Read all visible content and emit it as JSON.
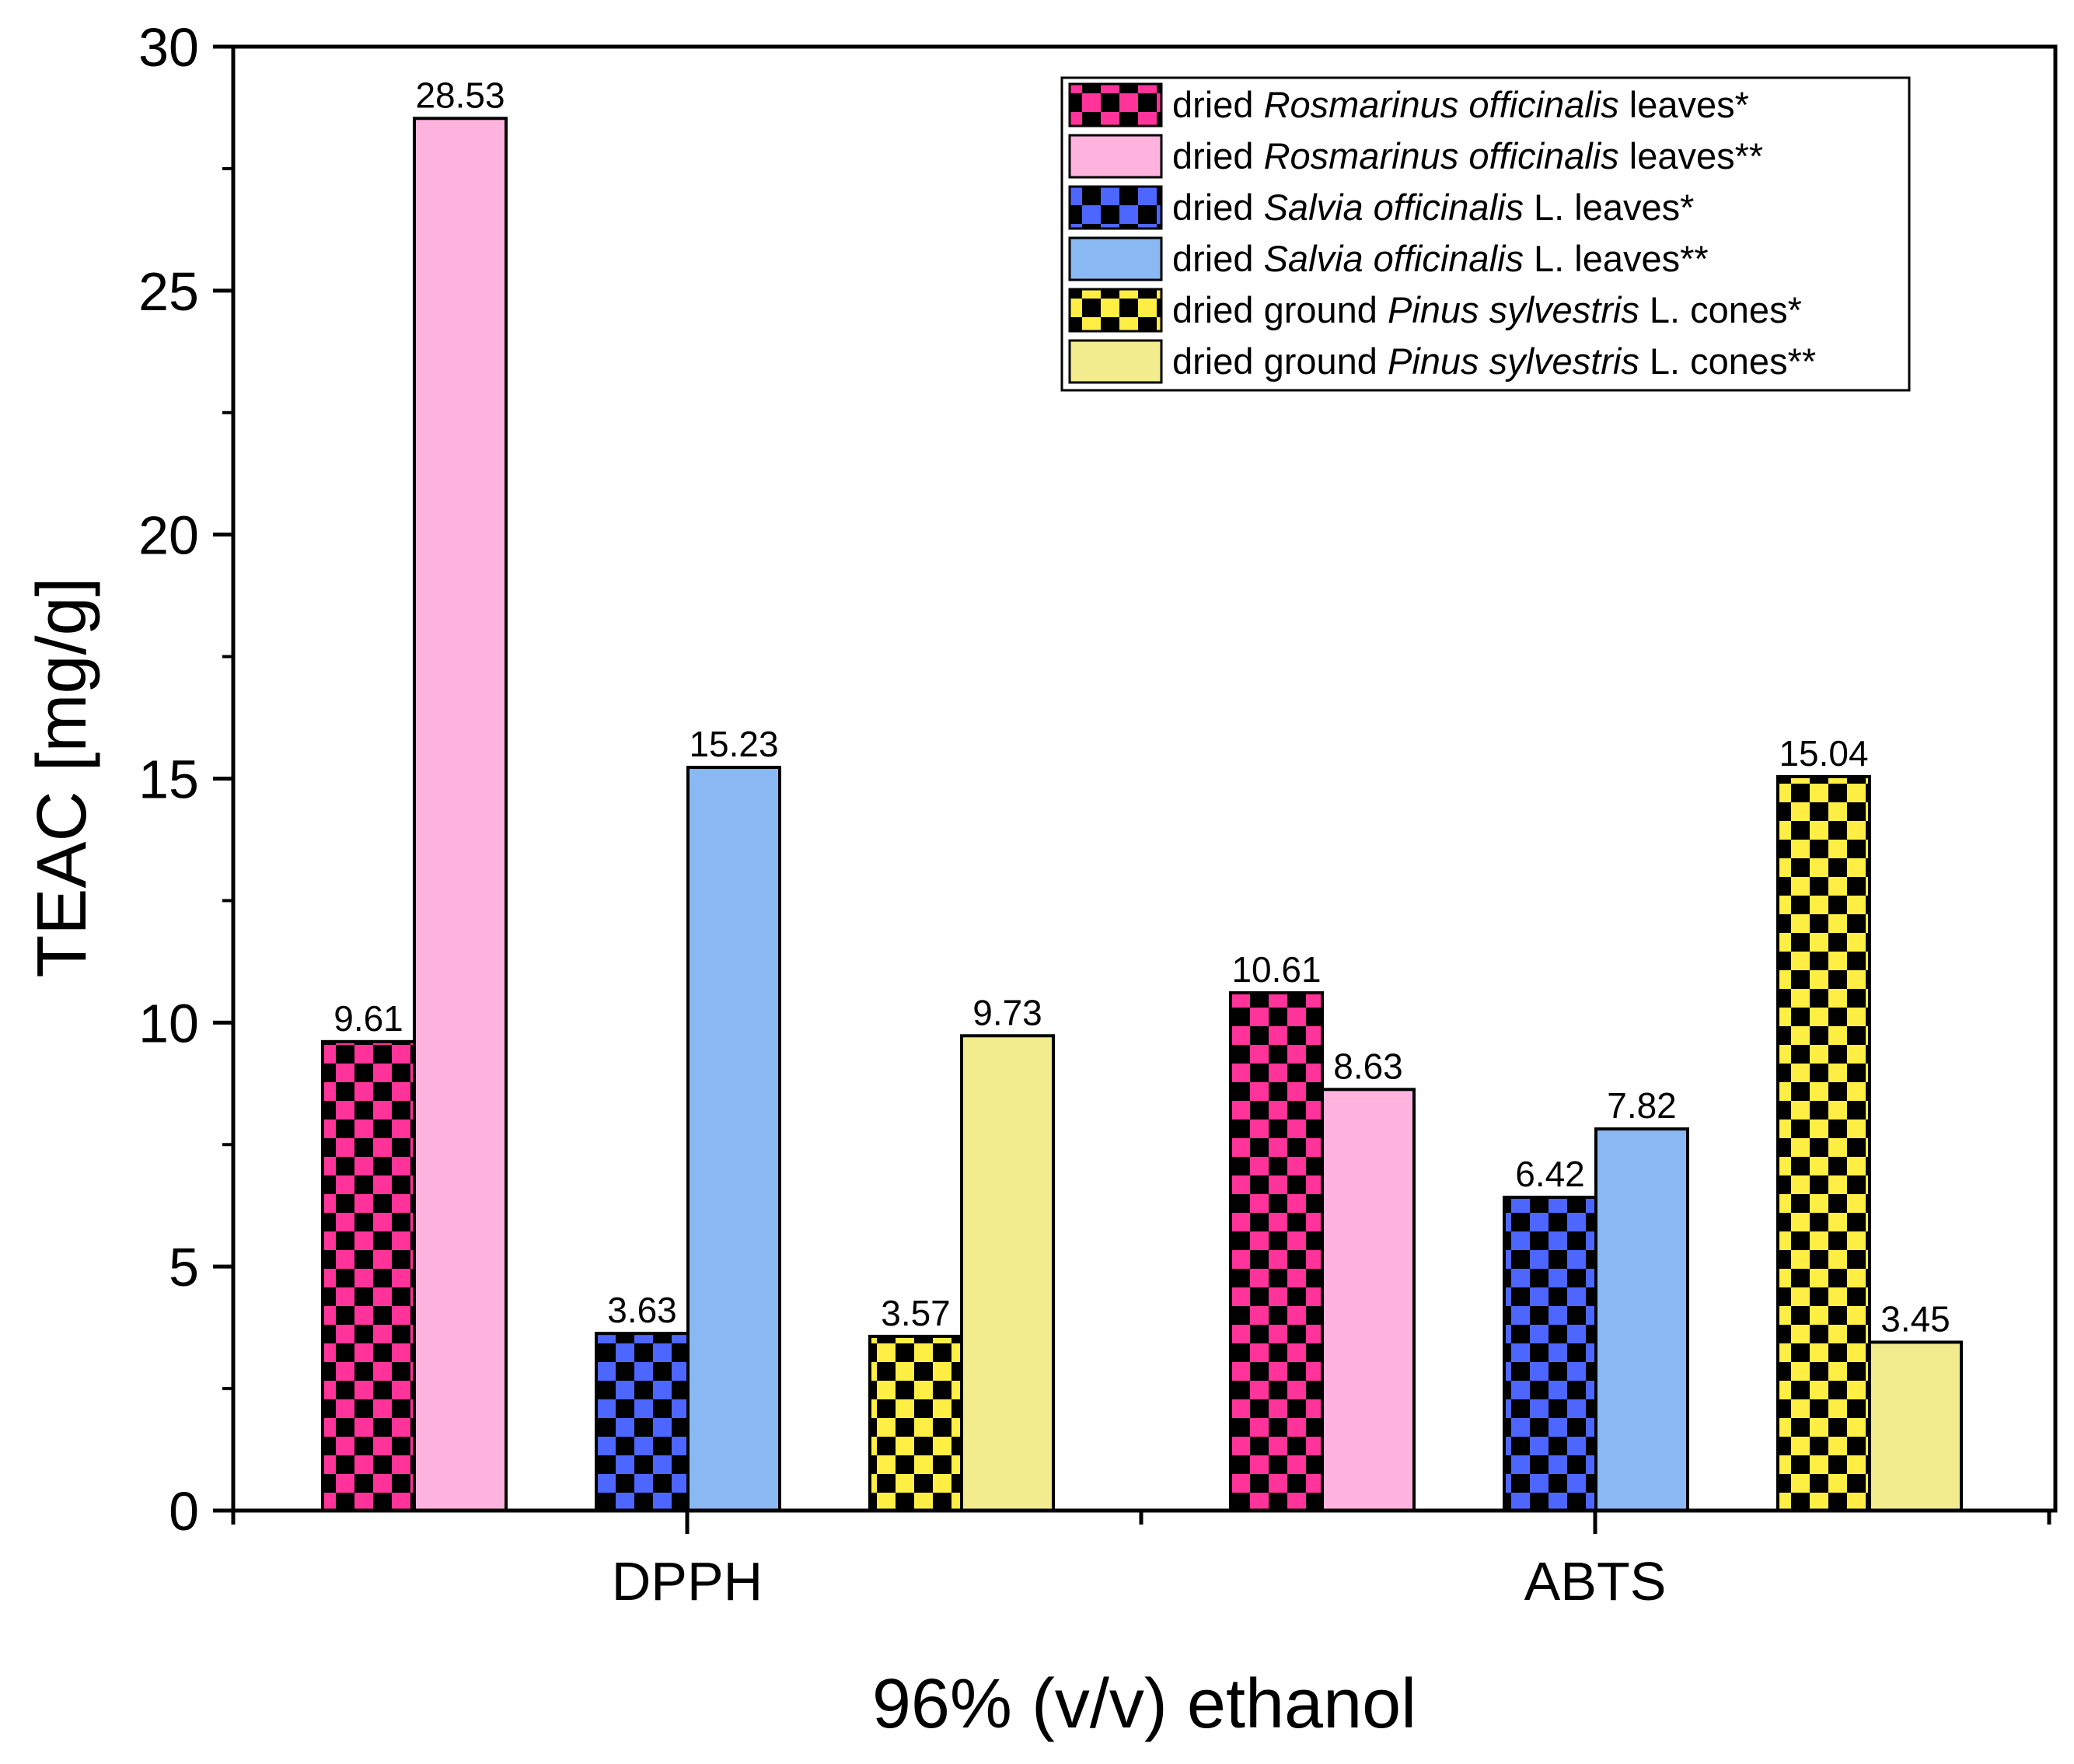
{
  "chart_data": {
    "type": "bar",
    "title": "",
    "xlabel": "96% (v/v) ethanol",
    "ylabel": "TEAC [mg/g]",
    "ylim": [
      0,
      30
    ],
    "yticks": [
      "0",
      "5",
      "10",
      "15",
      "20",
      "25",
      "30"
    ],
    "categories": [
      "DPPH",
      "ABTS"
    ],
    "series": [
      {
        "legend_parts": [
          {
            "text": "dried ",
            "italic": false
          },
          {
            "text": "Rosmarinus officinalis",
            "italic": true
          },
          {
            "text": " leaves*",
            "italic": false
          }
        ],
        "color": "#ff3399",
        "pattern": "checker",
        "values": [
          9.61,
          10.61
        ],
        "labels": [
          "9.61",
          "10.61"
        ]
      },
      {
        "legend_parts": [
          {
            "text": "dried ",
            "italic": false
          },
          {
            "text": "Rosmarinus officinalis",
            "italic": true
          },
          {
            "text": " leaves**",
            "italic": false
          }
        ],
        "color": "#ffb3de",
        "pattern": "solid",
        "values": [
          28.53,
          8.63
        ],
        "labels": [
          "28.53",
          "8.63"
        ]
      },
      {
        "legend_parts": [
          {
            "text": "dried ",
            "italic": false
          },
          {
            "text": "Salvia officinalis",
            "italic": true
          },
          {
            "text": " L. leaves*",
            "italic": false
          }
        ],
        "color": "#4d66ff",
        "pattern": "checker",
        "values": [
          3.63,
          6.42
        ],
        "labels": [
          "3.63",
          "6.42"
        ]
      },
      {
        "legend_parts": [
          {
            "text": "dried ",
            "italic": false
          },
          {
            "text": "Salvia officinalis",
            "italic": true
          },
          {
            "text": " L. leaves**",
            "italic": false
          }
        ],
        "color": "#8ab8f2",
        "pattern": "solid",
        "values": [
          15.23,
          7.82
        ],
        "labels": [
          "15.23",
          "7.82"
        ]
      },
      {
        "legend_parts": [
          {
            "text": "dried ground ",
            "italic": false
          },
          {
            "text": "Pinus sylvestris",
            "italic": true
          },
          {
            "text": " L. cones*",
            "italic": false
          }
        ],
        "color": "#ffee44",
        "pattern": "checker",
        "values": [
          3.57,
          15.04
        ],
        "labels": [
          "3.57",
          "15.04"
        ]
      },
      {
        "legend_parts": [
          {
            "text": "dried ground ",
            "italic": false
          },
          {
            "text": "Pinus sylvestris",
            "italic": true
          },
          {
            "text": " L. cones**",
            "italic": false
          }
        ],
        "color": "#f2ec8f",
        "pattern": "solid",
        "values": [
          9.73,
          3.45
        ],
        "labels": [
          "9.73",
          "3.45"
        ]
      }
    ],
    "legend_position": "top-right",
    "grid": false
  }
}
